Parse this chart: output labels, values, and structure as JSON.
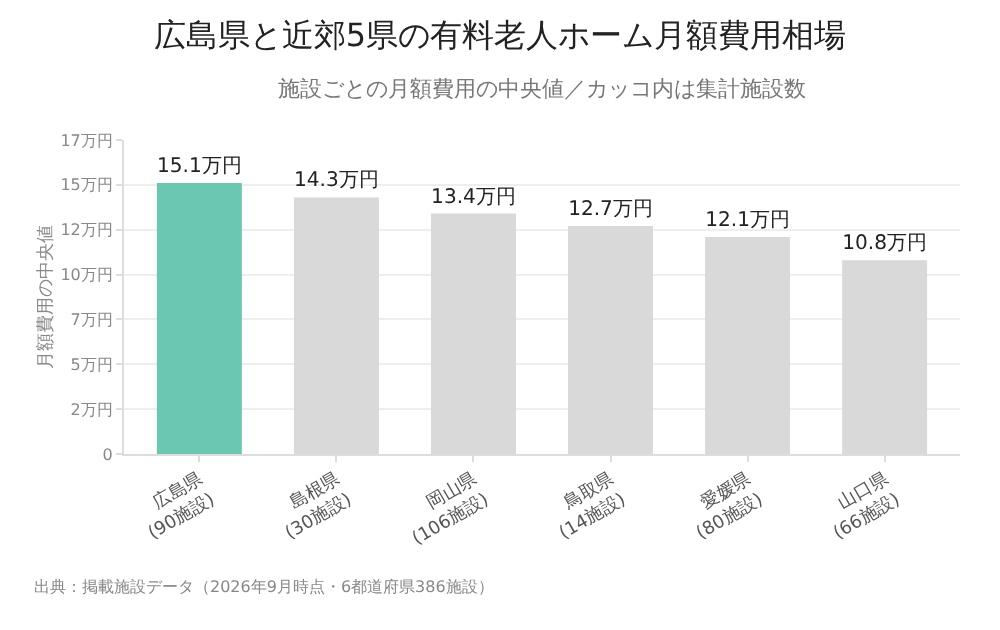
{
  "chart_data": {
    "type": "bar",
    "title": "広島県と近郊5県の有料老人ホーム月額費用相場",
    "subtitle": "施設ごとの月額費用の中央値／カッコ内は集計施設数",
    "ylabel": "月額費用の中央値",
    "categories": [
      "広島県\n(90施設)",
      "島根県\n(30施設)",
      "岡山県\n(106施設)",
      "鳥取県\n(14施設)",
      "愛媛県\n(80施設)",
      "山口県\n(66施設)"
    ],
    "values": [
      15.1,
      14.3,
      13.4,
      12.7,
      12.1,
      10.8
    ],
    "value_labels": [
      "15.1万円",
      "14.3万円",
      "13.4万円",
      "12.7万円",
      "12.1万円",
      "10.8万円"
    ],
    "colors": [
      "#6cc7b1",
      "#d9d9d9",
      "#d9d9d9",
      "#d9d9d9",
      "#d9d9d9",
      "#d9d9d9"
    ],
    "ylim": [
      0,
      17.5
    ],
    "yticks": [
      0,
      {
        "value": 2.5,
        "label": "2万円"
      },
      {
        "value": 5,
        "label": "5万円"
      },
      {
        "value": 7.5,
        "label": "7万円"
      },
      {
        "value": 10,
        "label": "10万円"
      },
      {
        "value": 12.5,
        "label": "12万円"
      },
      {
        "value": 15,
        "label": "15万円"
      },
      {
        "value": 17.5,
        "label": "17万円"
      }
    ],
    "grid": "y",
    "legend": false,
    "annotations": [
      "出典：掲載施設データ（2026年9月時点・6都道府県386施設）"
    ]
  }
}
